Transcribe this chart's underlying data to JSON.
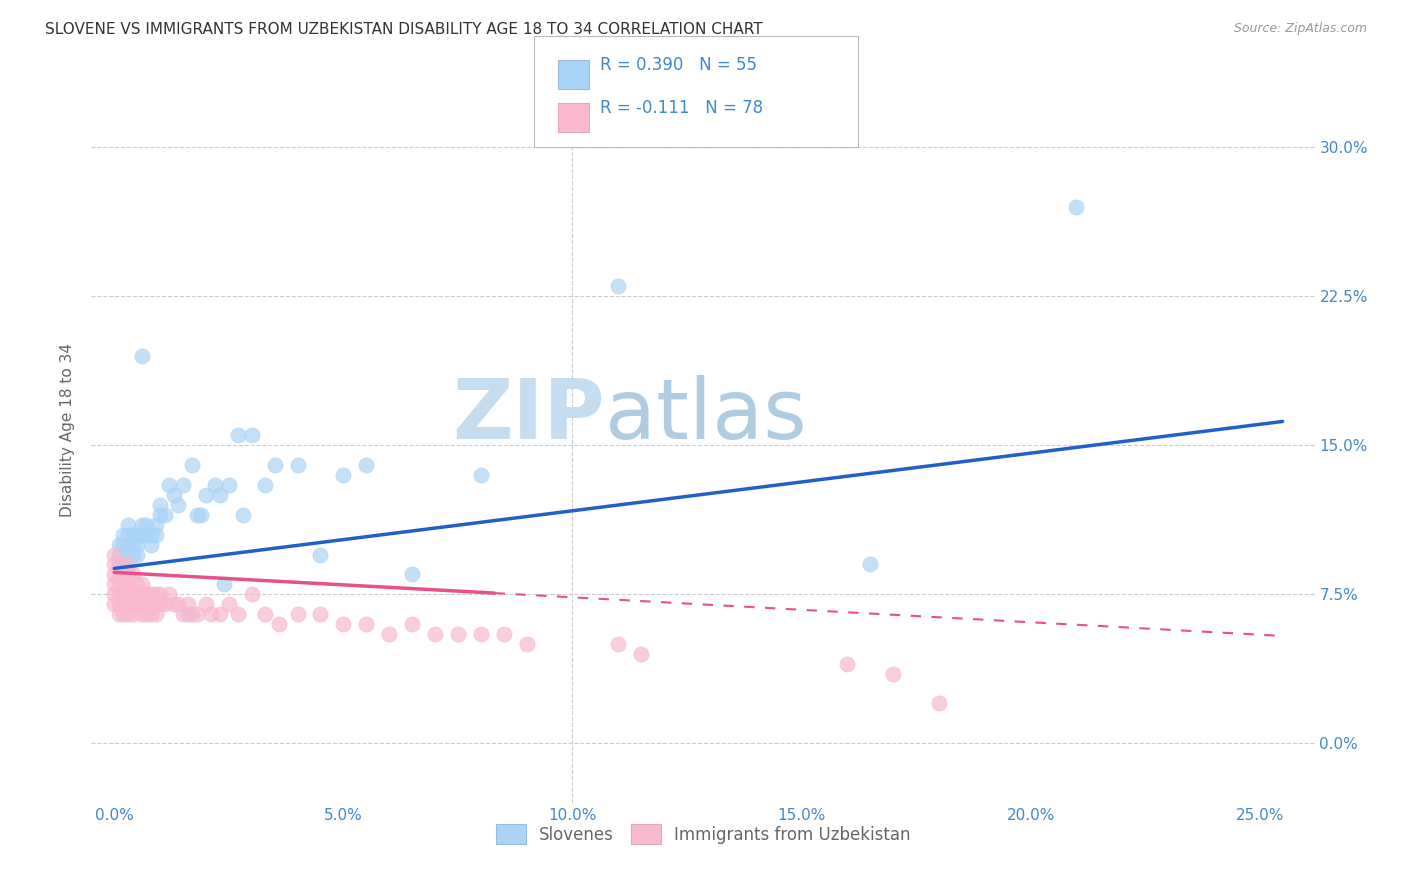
{
  "title": "SLOVENE VS IMMIGRANTS FROM UZBEKISTAN DISABILITY AGE 18 TO 34 CORRELATION CHART",
  "source": "Source: ZipAtlas.com",
  "xlabel_ticks": [
    "0.0%",
    "5.0%",
    "10.0%",
    "15.0%",
    "20.0%",
    "25.0%"
  ],
  "xlabel_tick_vals": [
    0.0,
    0.05,
    0.1,
    0.15,
    0.2,
    0.25
  ],
  "ylabel_ticks": [
    "0.0%",
    "7.5%",
    "15.0%",
    "22.5%",
    "30.0%"
  ],
  "ylabel_tick_vals": [
    0.0,
    0.075,
    0.15,
    0.225,
    0.3
  ],
  "ylabel": "Disability Age 18 to 34",
  "xlim": [
    -0.005,
    0.262
  ],
  "ylim": [
    -0.03,
    0.345
  ],
  "legend_label1": "R = 0.390   N = 55",
  "legend_label2": "R = -0.111   N = 78",
  "legend_color1": "#aad4f5",
  "legend_color2": "#f9b8ce",
  "scatter_color1": "#aad4f5",
  "scatter_color2": "#f9b8ce",
  "line_color1": "#2060c8",
  "line_color2": "#e8508a",
  "watermark_zip": "ZIP",
  "watermark_atlas": "atlas",
  "watermark_color_zip": "#c8dff0",
  "watermark_color_atlas": "#b8d4e8",
  "bottom_legend1": "Slovenes",
  "bottom_legend2": "Immigrants from Uzbekistan",
  "N1": 55,
  "N2": 78,
  "background_color": "#ffffff",
  "grid_color": "#cccccc",
  "title_color": "#333333",
  "axis_label_color": "#666666",
  "tick_label_color": "#4488cc",
  "slovene_x": [
    0.001,
    0.001,
    0.001,
    0.002,
    0.002,
    0.002,
    0.003,
    0.003,
    0.003,
    0.003,
    0.004,
    0.004,
    0.004,
    0.005,
    0.005,
    0.005,
    0.006,
    0.006,
    0.007,
    0.007,
    0.008,
    0.008,
    0.009,
    0.009,
    0.01,
    0.01,
    0.011,
    0.012,
    0.013,
    0.014,
    0.015,
    0.016,
    0.017,
    0.018,
    0.019,
    0.02,
    0.022,
    0.023,
    0.024,
    0.025,
    0.027,
    0.028,
    0.03,
    0.033,
    0.035,
    0.04,
    0.045,
    0.05,
    0.055,
    0.065,
    0.08,
    0.11,
    0.165,
    0.21,
    0.006
  ],
  "slovene_y": [
    0.09,
    0.1,
    0.095,
    0.09,
    0.1,
    0.105,
    0.095,
    0.1,
    0.11,
    0.105,
    0.1,
    0.095,
    0.105,
    0.1,
    0.105,
    0.095,
    0.105,
    0.11,
    0.105,
    0.11,
    0.1,
    0.105,
    0.11,
    0.105,
    0.115,
    0.12,
    0.115,
    0.13,
    0.125,
    0.12,
    0.13,
    0.065,
    0.14,
    0.115,
    0.115,
    0.125,
    0.13,
    0.125,
    0.08,
    0.13,
    0.155,
    0.115,
    0.155,
    0.13,
    0.14,
    0.14,
    0.095,
    0.135,
    0.14,
    0.085,
    0.135,
    0.23,
    0.09,
    0.27,
    0.195
  ],
  "uzbek_x": [
    0.0,
    0.0,
    0.0,
    0.0,
    0.0,
    0.0,
    0.001,
    0.001,
    0.001,
    0.001,
    0.001,
    0.001,
    0.002,
    0.002,
    0.002,
    0.002,
    0.002,
    0.003,
    0.003,
    0.003,
    0.003,
    0.003,
    0.003,
    0.004,
    0.004,
    0.004,
    0.004,
    0.004,
    0.005,
    0.005,
    0.005,
    0.006,
    0.006,
    0.006,
    0.006,
    0.007,
    0.007,
    0.007,
    0.008,
    0.008,
    0.008,
    0.009,
    0.009,
    0.009,
    0.01,
    0.01,
    0.011,
    0.012,
    0.013,
    0.014,
    0.015,
    0.016,
    0.017,
    0.018,
    0.02,
    0.021,
    0.023,
    0.025,
    0.027,
    0.03,
    0.033,
    0.036,
    0.04,
    0.045,
    0.05,
    0.055,
    0.06,
    0.065,
    0.07,
    0.075,
    0.08,
    0.085,
    0.09,
    0.11,
    0.115,
    0.16,
    0.17,
    0.18
  ],
  "uzbek_y": [
    0.07,
    0.075,
    0.08,
    0.085,
    0.09,
    0.095,
    0.07,
    0.075,
    0.08,
    0.085,
    0.065,
    0.09,
    0.065,
    0.07,
    0.075,
    0.08,
    0.085,
    0.065,
    0.07,
    0.075,
    0.08,
    0.085,
    0.09,
    0.065,
    0.07,
    0.075,
    0.08,
    0.085,
    0.07,
    0.075,
    0.08,
    0.065,
    0.07,
    0.075,
    0.08,
    0.065,
    0.07,
    0.075,
    0.065,
    0.07,
    0.075,
    0.065,
    0.07,
    0.075,
    0.07,
    0.075,
    0.07,
    0.075,
    0.07,
    0.07,
    0.065,
    0.07,
    0.065,
    0.065,
    0.07,
    0.065,
    0.065,
    0.07,
    0.065,
    0.075,
    0.065,
    0.06,
    0.065,
    0.065,
    0.06,
    0.06,
    0.055,
    0.06,
    0.055,
    0.055,
    0.055,
    0.055,
    0.05,
    0.05,
    0.045,
    0.04,
    0.035,
    0.02
  ],
  "line1_x0": 0.0,
  "line1_y0": 0.088,
  "line1_x1": 0.255,
  "line1_y1": 0.162,
  "line2_x0": 0.0,
  "line2_y0": 0.086,
  "line2_x1": 0.255,
  "line2_y1": 0.054
}
